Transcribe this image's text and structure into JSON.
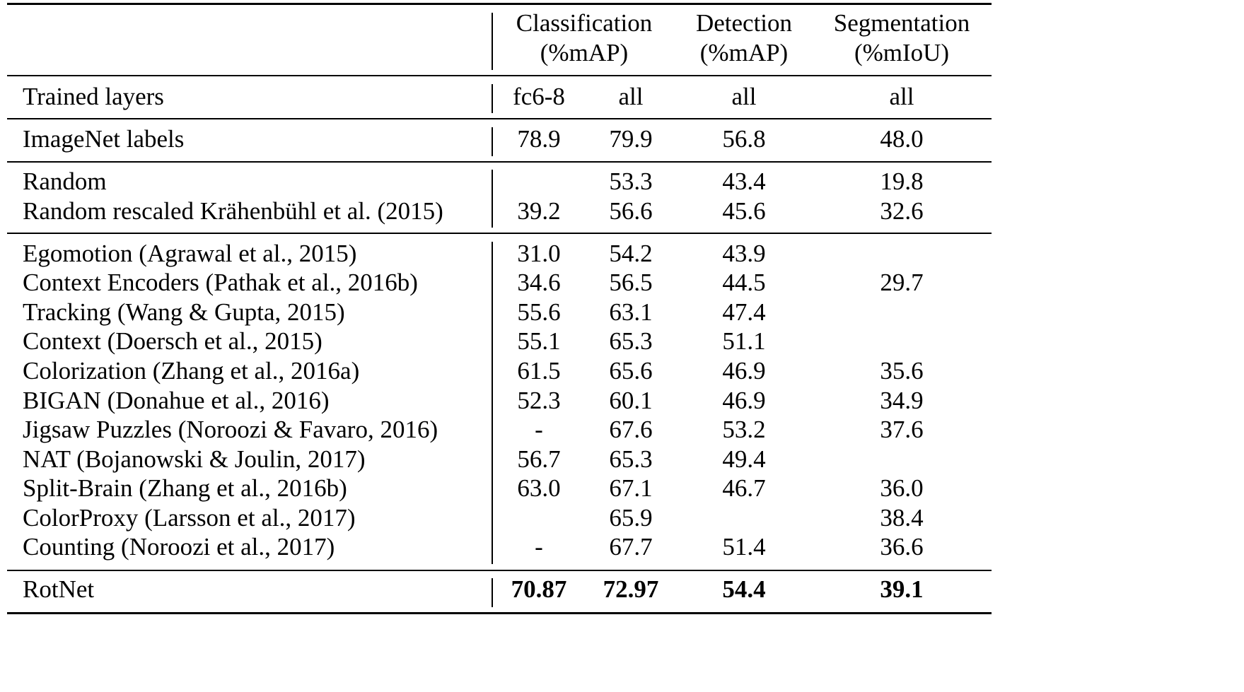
{
  "header": {
    "groups": [
      {
        "line1": "Classification",
        "line2": "(%mAP)"
      },
      {
        "line1": "Detection",
        "line2": "(%mAP)"
      },
      {
        "line1": "Segmentation",
        "line2": "(%mIoU)"
      }
    ]
  },
  "trained_layers": {
    "label": "Trained layers",
    "values": [
      "fc6-8",
      "all",
      "all",
      "all"
    ]
  },
  "rows": [
    {
      "method": "ImageNet labels",
      "values": [
        "78.9",
        "79.9",
        "56.8",
        "48.0"
      ],
      "bold": false
    },
    {
      "method": "Random",
      "values": [
        "",
        "53.3",
        "43.4",
        "19.8"
      ],
      "bold": false
    },
    {
      "method": "Random rescaled Krähenbühl et al. (2015)",
      "values": [
        "39.2",
        "56.6",
        "45.6",
        "32.6"
      ],
      "bold": false
    },
    {
      "method": "Egomotion (Agrawal et al., 2015)",
      "values": [
        "31.0",
        "54.2",
        "43.9",
        ""
      ],
      "bold": false
    },
    {
      "method": "Context Encoders (Pathak et al., 2016b)",
      "values": [
        "34.6",
        "56.5",
        "44.5",
        "29.7"
      ],
      "bold": false
    },
    {
      "method": "Tracking (Wang & Gupta, 2015)",
      "values": [
        "55.6",
        "63.1",
        "47.4",
        ""
      ],
      "bold": false
    },
    {
      "method": "Context (Doersch et al., 2015)",
      "values": [
        "55.1",
        "65.3",
        "51.1",
        ""
      ],
      "bold": false
    },
    {
      "method": "Colorization (Zhang et al., 2016a)",
      "values": [
        "61.5",
        "65.6",
        "46.9",
        "35.6"
      ],
      "bold": false
    },
    {
      "method": "BIGAN (Donahue et al., 2016)",
      "values": [
        "52.3",
        "60.1",
        "46.9",
        "34.9"
      ],
      "bold": false
    },
    {
      "method": "Jigsaw Puzzles (Noroozi & Favaro, 2016)",
      "values": [
        "-",
        "67.6",
        "53.2",
        "37.6"
      ],
      "bold": false
    },
    {
      "method": "NAT (Bojanowski & Joulin, 2017)",
      "values": [
        "56.7",
        "65.3",
        "49.4",
        ""
      ],
      "bold": false
    },
    {
      "method": "Split-Brain (Zhang et al., 2016b)",
      "values": [
        "63.0",
        "67.1",
        "46.7",
        "36.0"
      ],
      "bold": false
    },
    {
      "method": "ColorProxy (Larsson et al., 2017)",
      "values": [
        "",
        "65.9",
        "",
        "38.4"
      ],
      "bold": false
    },
    {
      "method": "Counting (Noroozi et al., 2017)",
      "values": [
        "-",
        "67.7",
        "51.4",
        "36.6"
      ],
      "bold": false
    },
    {
      "method": "RotNet",
      "values": [
        "70.87",
        "72.97",
        "54.4",
        "39.1"
      ],
      "bold": true
    }
  ]
}
